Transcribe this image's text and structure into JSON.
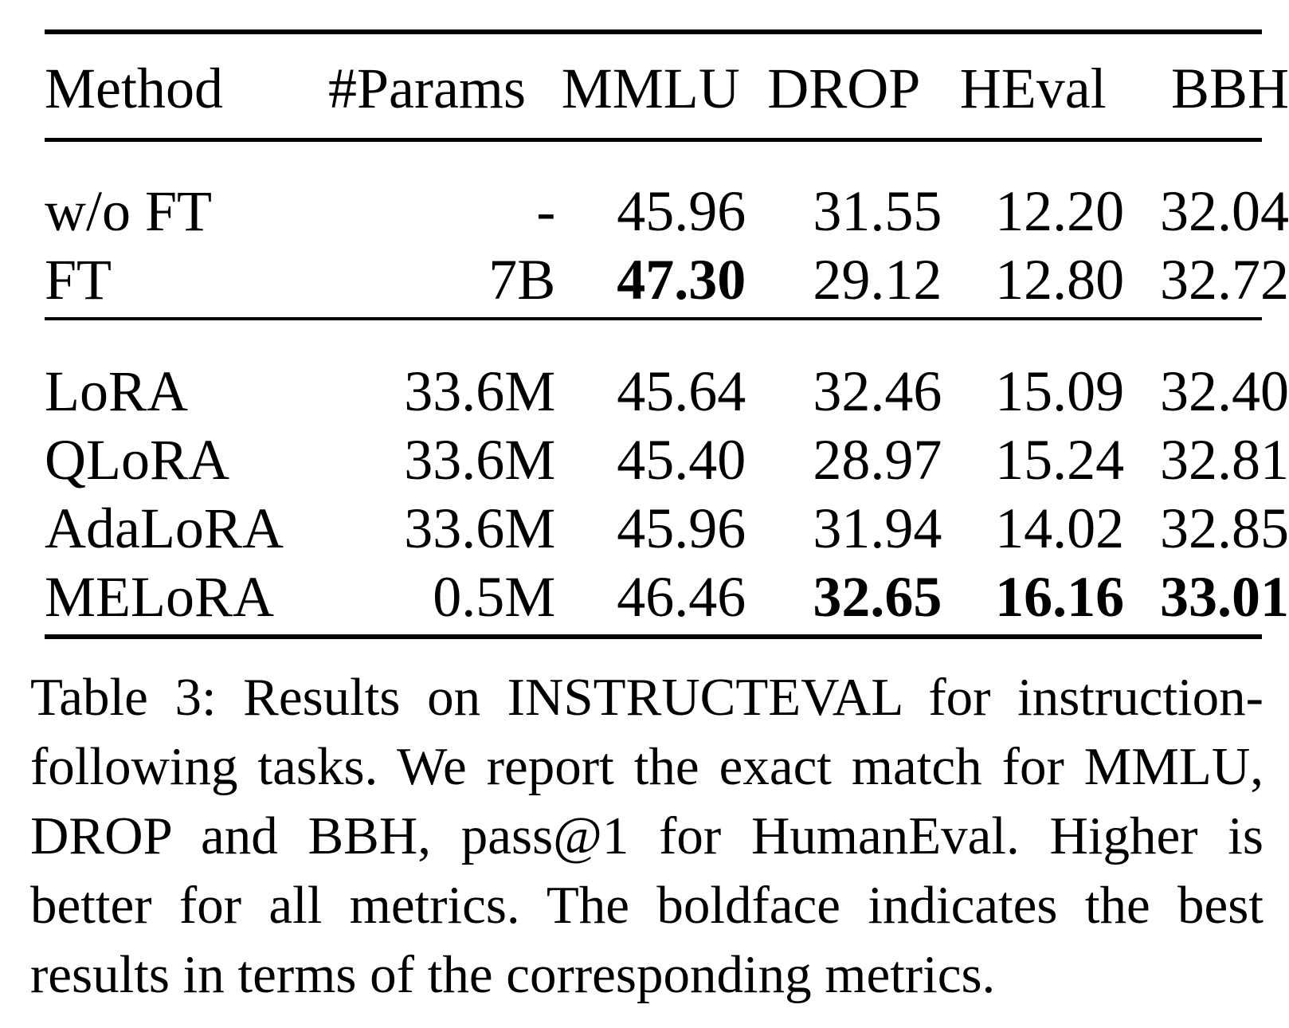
{
  "table": {
    "headers": [
      "Method",
      "#Params",
      "MMLU",
      "DROP",
      "HEval",
      "BBH"
    ],
    "groups": [
      [
        {
          "method": "w/o FT",
          "params": "-",
          "mmlu": "45.96",
          "drop": "31.55",
          "heval": "12.20",
          "bbh": "32.04"
        },
        {
          "method": "FT",
          "params": "7B",
          "mmlu": "47.30",
          "drop": "29.12",
          "heval": "12.80",
          "bbh": "32.72"
        }
      ],
      [
        {
          "method": "LoRA",
          "params": "33.6M",
          "mmlu": "45.64",
          "drop": "32.46",
          "heval": "15.09",
          "bbh": "32.40"
        },
        {
          "method": "QLoRA",
          "params": "33.6M",
          "mmlu": "45.40",
          "drop": "28.97",
          "heval": "15.24",
          "bbh": "32.81"
        },
        {
          "method": "AdaLoRA",
          "params": "33.6M",
          "mmlu": "45.96",
          "drop": "31.94",
          "heval": "14.02",
          "bbh": "32.85"
        },
        {
          "method": "MELoRA",
          "params": "0.5M",
          "mmlu": "46.46",
          "drop": "32.65",
          "heval": "16.16",
          "bbh": "33.01"
        }
      ]
    ]
  },
  "caption": "Table 3: Results on INSTRUCTEVAL for instruction-following tasks. We report the exact match for MMLU, DROP and BBH, pass@1 for HumanEval. Higher is better for all metrics. The boldface indicates the best results in terms of the corresponding metrics."
}
